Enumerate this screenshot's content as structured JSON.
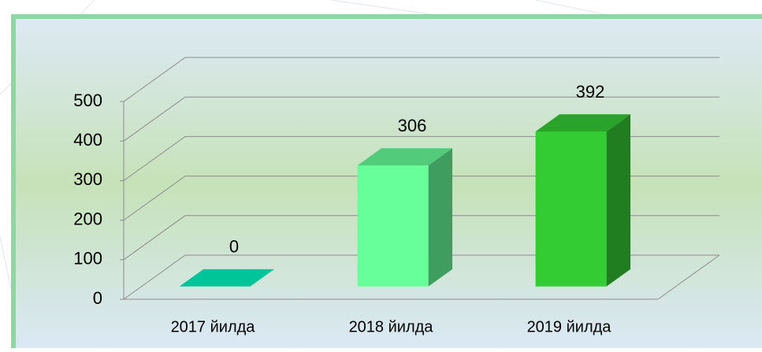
{
  "chart_data": {
    "type": "bar",
    "categories": [
      "2017 йилда",
      "2018 йилда",
      "2019 йилда"
    ],
    "values": [
      0,
      306,
      392
    ],
    "colors": [
      "#00c49a",
      "#66ff99",
      "#33cc33"
    ],
    "ylim": [
      0,
      500
    ],
    "yticks": [
      0,
      100,
      200,
      300,
      400,
      500
    ],
    "grid": true
  }
}
